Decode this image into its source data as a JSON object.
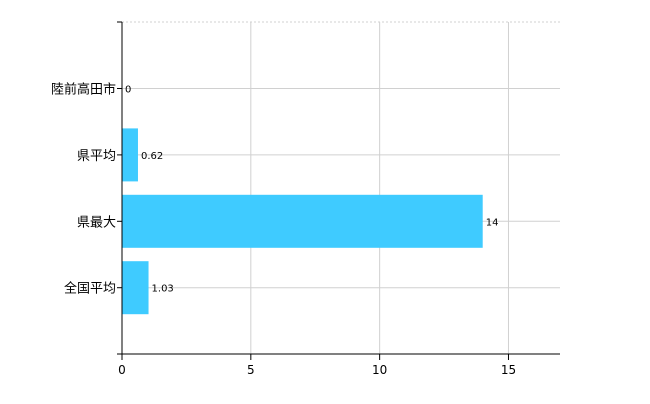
{
  "chart_data": {
    "type": "bar",
    "orientation": "horizontal",
    "categories": [
      "陸前高田市",
      "県平均",
      "県最大",
      "全国平均"
    ],
    "values": [
      0,
      0.62,
      14,
      1.03
    ],
    "data_labels": [
      "0",
      "0.62",
      "14",
      "1.03"
    ],
    "xlim": [
      0,
      17
    ],
    "x_ticks": [
      0,
      5,
      10,
      15
    ],
    "x_tick_labels": [
      "0",
      "5",
      "10",
      "15"
    ],
    "grid": true,
    "title": "",
    "xlabel": "",
    "ylabel": "",
    "bar_color": "#3fcbff",
    "grid_color": "#d0d0d0"
  }
}
